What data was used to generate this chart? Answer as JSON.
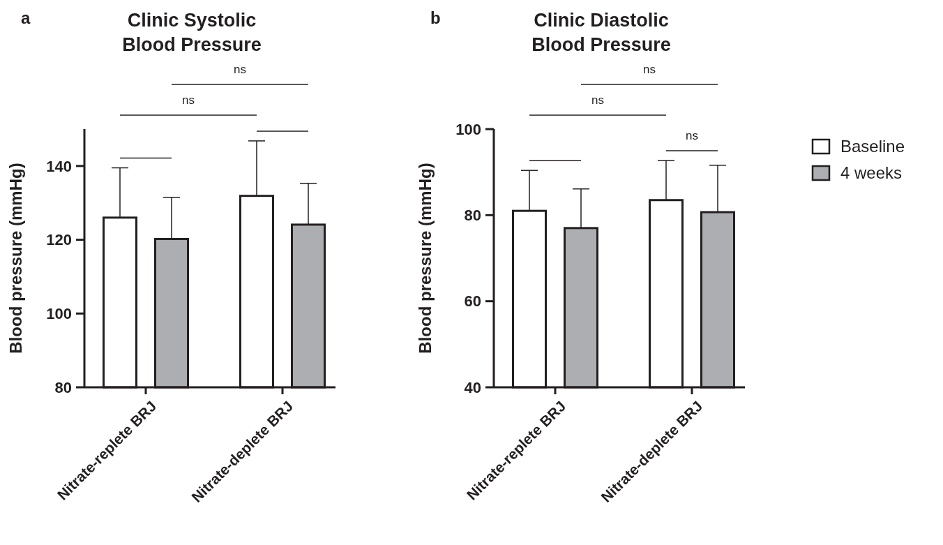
{
  "chart_data": [
    {
      "type": "bar",
      "title": "Clinic Systolic\nBlood Pressure",
      "ylabel": "Blood pressure (mmHg)",
      "categories": [
        "Nitrate-replete BRJ",
        "Nitrate-deplete BRJ"
      ],
      "ylim": [
        80,
        150
      ],
      "yticks": [
        80,
        100,
        120,
        140
      ],
      "series": [
        {
          "color": "#ffffff",
          "values": [
            126,
            131.9
          ],
          "errors": [
            [
              126,
              139.5
            ],
            [
              131.9,
              146.8
            ]
          ]
        },
        {
          "color": "#adaeb1",
          "values": [
            120.2,
            124.1
          ],
          "errors": [
            [
              120.2,
              131.5
            ],
            [
              124.1,
              135.3
            ]
          ]
        }
      ],
      "annotations": [
        "a",
        "ns",
        "ns"
      ]
    },
    {
      "type": "bar",
      "title": "Clinic Diastolic\nBlood Pressure",
      "ylabel": "Blood pressure (mmHg)",
      "categories": [
        "Nitrate-replete BRJ",
        "Nitrate-deplete BRJ"
      ],
      "ylim": [
        40,
        100
      ],
      "yticks": [
        40,
        60,
        80,
        100
      ],
      "legend": "right",
      "series": [
        {
          "name": "Baseline",
          "color": "#ffffff",
          "values": [
            81,
            83.5
          ],
          "errors": [
            [
              81,
              90.4
            ],
            [
              83.5,
              92.7
            ]
          ]
        },
        {
          "name": "4 weeks",
          "color": "#adaeb1",
          "values": [
            77,
            80.7
          ],
          "errors": [
            [
              77,
              86.1
            ],
            [
              80.7,
              91.6
            ]
          ]
        }
      ],
      "annotations": [
        "b",
        "ns",
        "ns",
        "ns"
      ]
    }
  ]
}
